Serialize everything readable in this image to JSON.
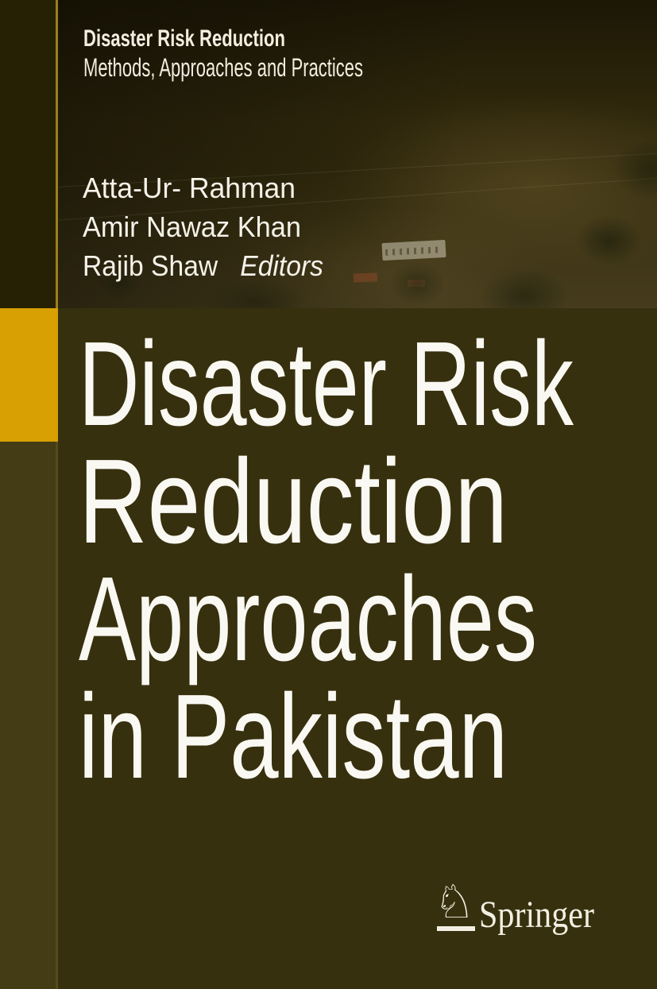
{
  "series": {
    "title": "Disaster Risk Reduction",
    "subtitle": "Methods, Approaches and Practices"
  },
  "editors": {
    "names": [
      "Atta-Ur- Rahman",
      "Amir Nawaz Khan",
      "Rajib Shaw"
    ],
    "label": "Editors"
  },
  "title": {
    "lines": [
      "Disaster Risk",
      "Reduction",
      "Approaches",
      "in Pakistan"
    ]
  },
  "publisher": {
    "name": "Springer",
    "logo_glyph": "♘",
    "logo_icon": "springer-horse-icon"
  },
  "colors": {
    "background_olive": "#37300e",
    "left_strip_top": "#262105",
    "left_strip_bottom": "#433c14",
    "accent_gold": "#d8a002",
    "gold_edge_line": "#9c7f1c",
    "title_text": "#faf8f2",
    "publisher_text": "#f2efe2"
  }
}
